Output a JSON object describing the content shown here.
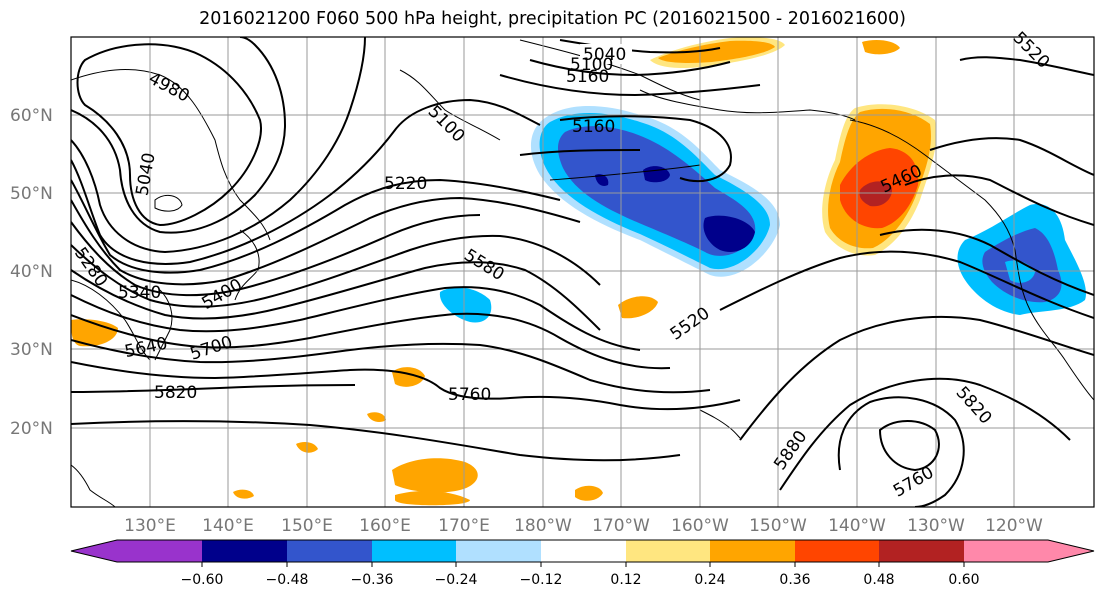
{
  "title": "2016021200 F060 500 hPa height, precipitation PC (2016021500 - 2016021600)",
  "lat_labels": [
    "60°N",
    "50°N",
    "40°N",
    "30°N",
    "20°N"
  ],
  "lon_labels": [
    "130°E",
    "140°E",
    "150°E",
    "160°E",
    "170°E",
    "180°W",
    "170°W",
    "160°W",
    "150°W",
    "140°W",
    "130°W",
    "120°W"
  ],
  "contour_labels": [
    "5040",
    "5100",
    "5160",
    "4980",
    "5040",
    "5100",
    "5160",
    "5220",
    "5280",
    "5340",
    "5400",
    "5580",
    "5520",
    "5460",
    "5640",
    "5700",
    "5820",
    "5760",
    "5880",
    "5820",
    "5760",
    "5520"
  ],
  "colorbar": {
    "ticks": [
      "−0.60",
      "−0.48",
      "−0.36",
      "−0.24",
      "−0.12",
      "0.12",
      "0.24",
      "0.36",
      "0.48",
      "0.60"
    ],
    "colors": [
      "#9933cc",
      "#00008b",
      "#3355cc",
      "#00bfff",
      "#b0e0ff",
      "#ffffff",
      "#ffe680",
      "#ffa500",
      "#ff4500",
      "#b22222",
      "#ff88aa"
    ]
  }
}
